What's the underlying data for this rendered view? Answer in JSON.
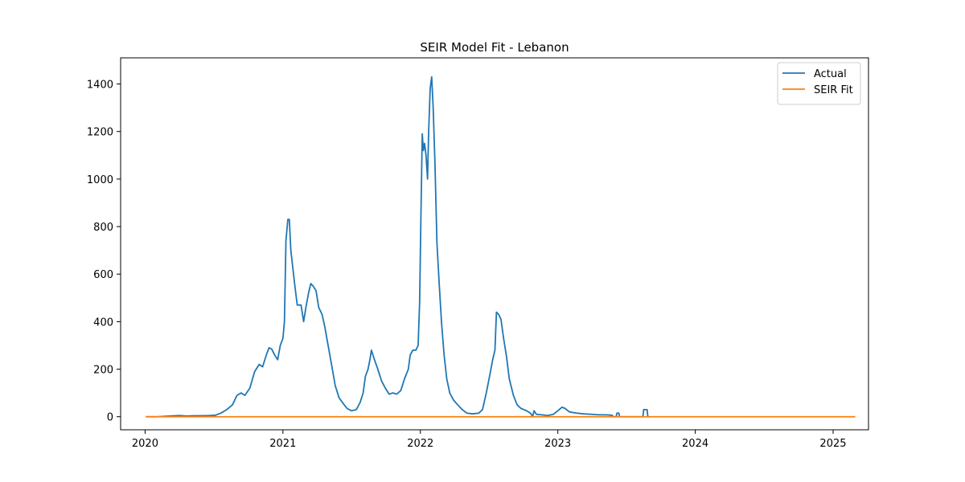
{
  "chart_data": {
    "type": "line",
    "title": "SEIR Model Fit - Lebanon",
    "xlabel": "",
    "ylabel": "",
    "x_axis": {
      "type": "date",
      "range": [
        "2019-10-28",
        "2025-04-05"
      ],
      "ticks": [
        "2020-01-01",
        "2021-01-01",
        "2022-01-01",
        "2023-01-01",
        "2024-01-01",
        "2025-01-01"
      ],
      "tick_labels": [
        "2020",
        "2021",
        "2022",
        "2023",
        "2024",
        "2025"
      ]
    },
    "y_axis": {
      "range": [
        -55,
        1510
      ],
      "ticks": [
        0,
        200,
        400,
        600,
        800,
        1000,
        1200,
        1400
      ],
      "tick_labels": [
        "0",
        "200",
        "400",
        "600",
        "800",
        "1000",
        "1200",
        "1400"
      ]
    },
    "grid": false,
    "legend_position": "top-right",
    "series": [
      {
        "name": "Actual",
        "color": "#1f77b4",
        "points": [
          [
            "2020-01-03",
            0
          ],
          [
            "2020-02-01",
            0
          ],
          [
            "2020-03-05",
            3
          ],
          [
            "2020-04-01",
            5
          ],
          [
            "2020-04-20",
            3
          ],
          [
            "2020-05-10",
            4
          ],
          [
            "2020-06-01",
            4
          ],
          [
            "2020-06-20",
            5
          ],
          [
            "2020-07-05",
            6
          ],
          [
            "2020-07-20",
            15
          ],
          [
            "2020-08-05",
            30
          ],
          [
            "2020-08-20",
            50
          ],
          [
            "2020-09-01",
            90
          ],
          [
            "2020-09-12",
            100
          ],
          [
            "2020-09-22",
            90
          ],
          [
            "2020-10-05",
            120
          ],
          [
            "2020-10-18",
            190
          ],
          [
            "2020-10-30",
            220
          ],
          [
            "2020-11-08",
            210
          ],
          [
            "2020-11-18",
            260
          ],
          [
            "2020-11-25",
            290
          ],
          [
            "2020-12-02",
            285
          ],
          [
            "2020-12-10",
            260
          ],
          [
            "2020-12-18",
            240
          ],
          [
            "2020-12-25",
            300
          ],
          [
            "2021-01-01",
            330
          ],
          [
            "2021-01-05",
            400
          ],
          [
            "2021-01-09",
            740
          ],
          [
            "2021-01-14",
            830
          ],
          [
            "2021-01-18",
            830
          ],
          [
            "2021-01-22",
            700
          ],
          [
            "2021-02-01",
            560
          ],
          [
            "2021-02-08",
            470
          ],
          [
            "2021-02-18",
            470
          ],
          [
            "2021-02-25",
            400
          ],
          [
            "2021-03-03",
            460
          ],
          [
            "2021-03-10",
            520
          ],
          [
            "2021-03-16",
            560
          ],
          [
            "2021-03-22",
            550
          ],
          [
            "2021-03-30",
            530
          ],
          [
            "2021-04-06",
            460
          ],
          [
            "2021-04-15",
            430
          ],
          [
            "2021-04-22",
            380
          ],
          [
            "2021-05-01",
            300
          ],
          [
            "2021-05-10",
            220
          ],
          [
            "2021-05-20",
            130
          ],
          [
            "2021-05-30",
            80
          ],
          [
            "2021-06-08",
            60
          ],
          [
            "2021-06-20",
            35
          ],
          [
            "2021-07-02",
            25
          ],
          [
            "2021-07-15",
            30
          ],
          [
            "2021-07-25",
            60
          ],
          [
            "2021-08-02",
            100
          ],
          [
            "2021-08-08",
            170
          ],
          [
            "2021-08-15",
            200
          ],
          [
            "2021-08-20",
            240
          ],
          [
            "2021-08-24",
            280
          ],
          [
            "2021-09-01",
            240
          ],
          [
            "2021-09-10",
            200
          ],
          [
            "2021-09-20",
            150
          ],
          [
            "2021-09-30",
            120
          ],
          [
            "2021-10-10",
            95
          ],
          [
            "2021-10-20",
            100
          ],
          [
            "2021-10-30",
            95
          ],
          [
            "2021-11-10",
            110
          ],
          [
            "2021-11-20",
            160
          ],
          [
            "2021-11-30",
            200
          ],
          [
            "2021-12-05",
            260
          ],
          [
            "2021-12-12",
            280
          ],
          [
            "2021-12-20",
            280
          ],
          [
            "2021-12-26",
            300
          ],
          [
            "2021-12-30",
            480
          ],
          [
            "2022-01-03",
            900
          ],
          [
            "2022-01-06",
            1190
          ],
          [
            "2022-01-09",
            1120
          ],
          [
            "2022-01-12",
            1150
          ],
          [
            "2022-01-16",
            1100
          ],
          [
            "2022-01-20",
            1000
          ],
          [
            "2022-01-23",
            1200
          ],
          [
            "2022-01-27",
            1380
          ],
          [
            "2022-01-31",
            1430
          ],
          [
            "2022-02-04",
            1300
          ],
          [
            "2022-02-09",
            1050
          ],
          [
            "2022-02-14",
            730
          ],
          [
            "2022-02-20",
            560
          ],
          [
            "2022-02-26",
            400
          ],
          [
            "2022-03-05",
            260
          ],
          [
            "2022-03-12",
            160
          ],
          [
            "2022-03-20",
            100
          ],
          [
            "2022-03-30",
            70
          ],
          [
            "2022-04-10",
            50
          ],
          [
            "2022-04-22",
            30
          ],
          [
            "2022-05-05",
            15
          ],
          [
            "2022-05-20",
            12
          ],
          [
            "2022-06-05",
            15
          ],
          [
            "2022-06-15",
            30
          ],
          [
            "2022-06-25",
            100
          ],
          [
            "2022-07-05",
            180
          ],
          [
            "2022-07-12",
            240
          ],
          [
            "2022-07-18",
            280
          ],
          [
            "2022-07-22",
            440
          ],
          [
            "2022-07-28",
            430
          ],
          [
            "2022-08-03",
            410
          ],
          [
            "2022-08-10",
            330
          ],
          [
            "2022-08-18",
            250
          ],
          [
            "2022-08-25",
            160
          ],
          [
            "2022-09-05",
            90
          ],
          [
            "2022-09-15",
            50
          ],
          [
            "2022-09-25",
            35
          ],
          [
            "2022-10-10",
            25
          ],
          [
            "2022-10-20",
            15
          ],
          [
            "2022-10-26",
            2
          ],
          [
            "2022-10-30",
            25
          ],
          [
            "2022-11-05",
            10
          ],
          [
            "2022-11-20",
            8
          ],
          [
            "2022-12-05",
            5
          ],
          [
            "2022-12-20",
            10
          ],
          [
            "2023-01-01",
            25
          ],
          [
            "2023-01-12",
            40
          ],
          [
            "2023-01-20",
            35
          ],
          [
            "2023-02-01",
            20
          ],
          [
            "2023-02-20",
            15
          ],
          [
            "2023-03-10",
            12
          ],
          [
            "2023-04-01",
            10
          ],
          [
            "2023-04-20",
            8
          ],
          [
            "2023-05-10",
            8
          ],
          [
            "2023-05-25",
            6
          ],
          [
            "2023-05-28",
            0
          ],
          [
            "2023-06-05",
            0
          ],
          [
            "2023-06-07",
            15
          ],
          [
            "2023-06-12",
            15
          ],
          [
            "2023-06-14",
            0
          ],
          [
            "2023-07-15",
            0
          ],
          [
            "2023-08-15",
            0
          ],
          [
            "2023-08-17",
            30
          ],
          [
            "2023-08-26",
            30
          ],
          [
            "2023-08-28",
            0
          ],
          [
            "2023-09-01",
            0
          ]
        ]
      },
      {
        "name": "SEIR Fit",
        "color": "#ff7f0e",
        "points": [
          [
            "2020-01-03",
            0
          ],
          [
            "2025-03-01",
            0
          ]
        ]
      }
    ]
  }
}
